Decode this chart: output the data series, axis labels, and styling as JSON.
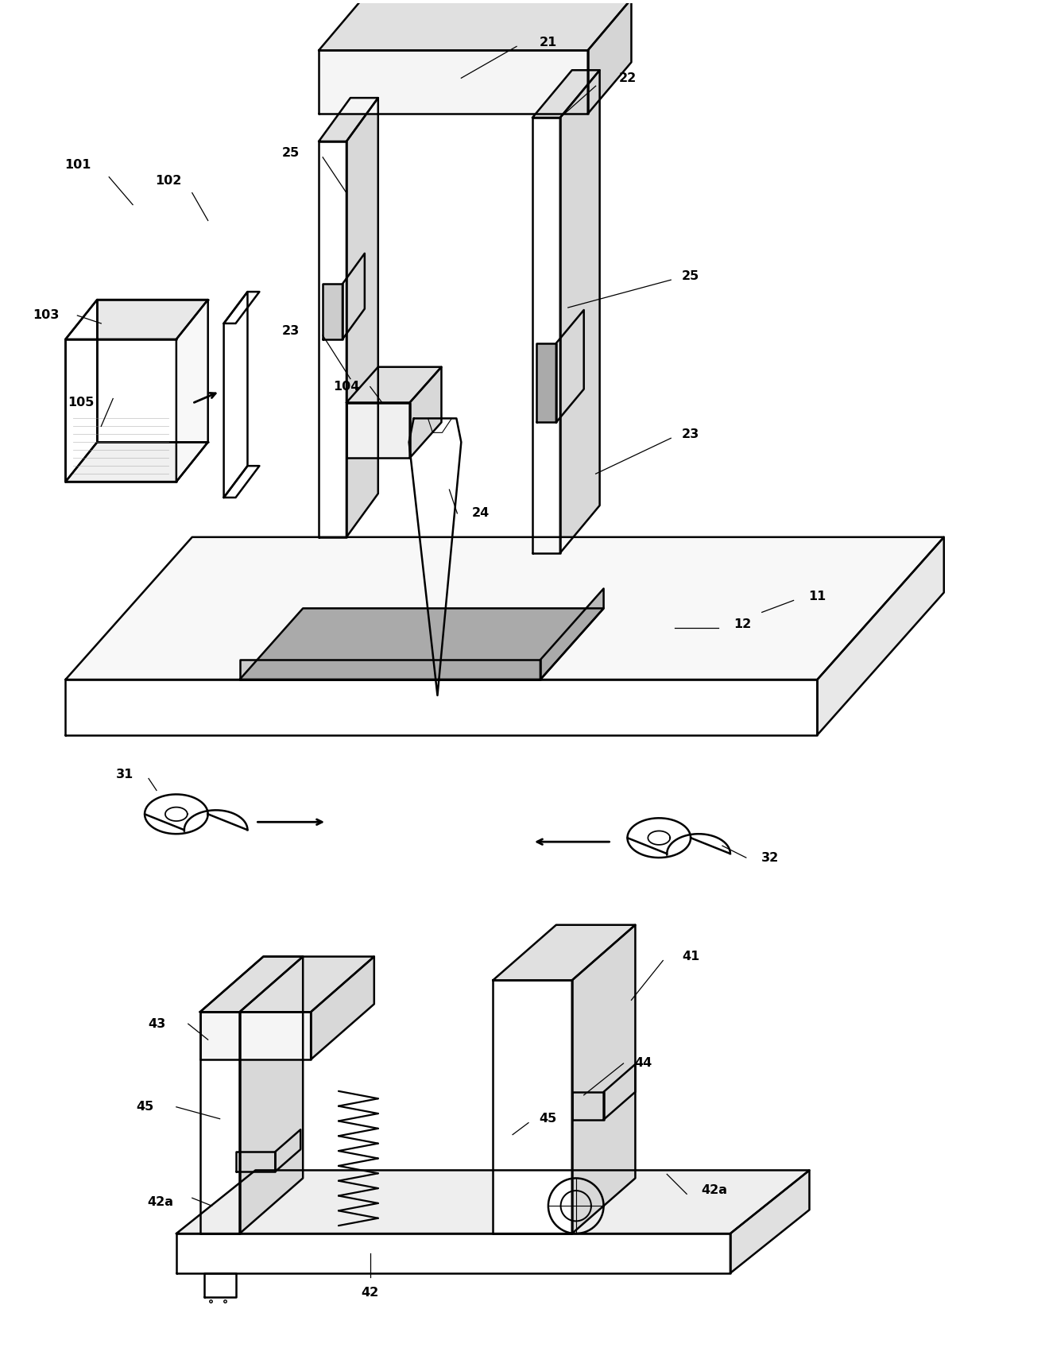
{
  "bg_color": "#ffffff",
  "lc": "#000000",
  "lw": 1.8,
  "fw": 13.2,
  "fh": 17.25
}
